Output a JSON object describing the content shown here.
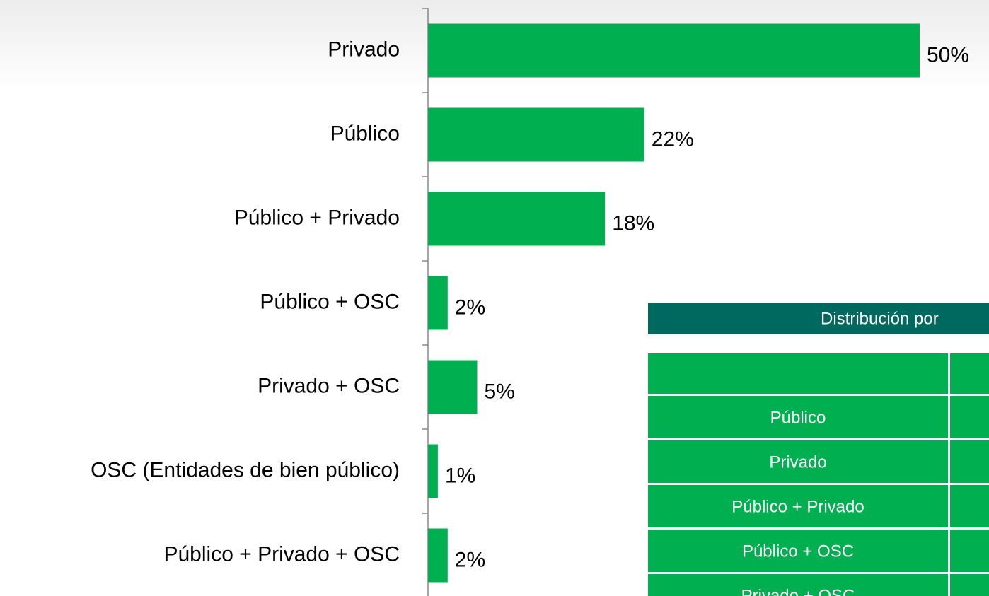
{
  "chart_data": {
    "type": "bar",
    "orientation": "horizontal",
    "categories": [
      "Privado",
      "Público",
      "Público + Privado",
      "Público + OSC",
      "Privado + OSC",
      "OSC (Entidades de bien público)",
      "Público + Privado + OSC"
    ],
    "values": [
      50,
      22,
      18,
      2,
      5,
      1,
      2
    ],
    "value_labels": [
      "50%",
      "22%",
      "18%",
      "2%",
      "5%",
      "1%",
      "2%"
    ],
    "color": "#00b050",
    "xlim": [
      0,
      50
    ]
  },
  "table": {
    "title": "Distribución por",
    "rows": [
      "Público",
      "Privado",
      "Público + Privado",
      "Público + OSC",
      "Privado + OSC"
    ]
  }
}
